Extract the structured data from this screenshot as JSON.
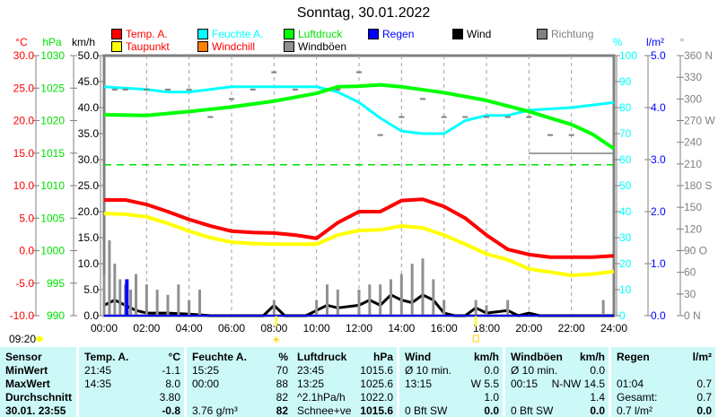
{
  "title": "Sonntag, 30.01.2022",
  "legend": [
    {
      "label": "Temp. A.",
      "color": "#ff0000",
      "text_color": "#ff0000"
    },
    {
      "label": "Feuchte A.",
      "color": "#00ffff",
      "text_color": "#00ffff"
    },
    {
      "label": "Luftdruck",
      "color": "#00ff00",
      "text_color": "#00e000"
    },
    {
      "label": "Regen",
      "color": "#0000ff",
      "text_color": "#0000ff"
    },
    {
      "label": "Wind",
      "color": "#000000",
      "text_color": "#000000"
    },
    {
      "label": "Richtung",
      "color": "#808080",
      "text_color": "#808080"
    },
    {
      "label": "Taupunkt",
      "color": "#ffff00",
      "text_color": "#ff0000"
    },
    {
      "label": "Windchill",
      "color": "#ff8000",
      "text_color": "#ff0000"
    },
    {
      "label": "Windböen",
      "color": "#909090",
      "text_color": "#000000"
    }
  ],
  "axes": {
    "temp": {
      "unit": "°C",
      "ticks": [
        "30.0",
        "25.0",
        "20.0",
        "15.0",
        "10.0",
        "5.0",
        "0.0",
        "-5.0",
        "-10.0"
      ]
    },
    "pressure": {
      "unit": "hPa",
      "ticks": [
        "1030",
        "1025",
        "1020",
        "1015",
        "1010",
        "1005",
        "1000",
        "995",
        "990"
      ]
    },
    "wind": {
      "unit": "km/h",
      "ticks": [
        "50.0",
        "45.0",
        "40.0",
        "35.0",
        "30.0",
        "25.0",
        "20.0",
        "15.0",
        "10.0",
        "5.0",
        "0.0"
      ]
    },
    "humidity": {
      "unit": "%",
      "ticks": [
        "100",
        "90",
        "80",
        "70",
        "60",
        "50",
        "40",
        "30",
        "20",
        "10",
        "0"
      ]
    },
    "rain": {
      "unit": "l/m²",
      "ticks": [
        "5.0",
        "4.0",
        "3.0",
        "2.0",
        "1.0",
        "0.0"
      ]
    },
    "direction": {
      "unit": "°",
      "ticks": [
        "360 N",
        "330",
        "300",
        "270 W",
        "240",
        "210",
        "180 S",
        "150",
        "120",
        "90  O",
        "60",
        "30",
        "0   N"
      ]
    },
    "time": [
      "00:00",
      "02:00",
      "04:00",
      "06:00",
      "08:00",
      "10:00",
      "12:00",
      "14:00",
      "16:00",
      "18:00",
      "20:00",
      "22:00",
      "24:00"
    ]
  },
  "sun": {
    "moon_time": "09:20",
    "sunrise_hour": 8.1,
    "sunset_hour": 17.5
  },
  "chart_data": {
    "type": "line",
    "title": "Sonntag, 30.01.2022",
    "xlim": [
      0,
      24
    ],
    "series": [
      {
        "name": "Temp. A.",
        "unit": "°C",
        "color": "#ff0000",
        "x": [
          0,
          1,
          2,
          3,
          4,
          5,
          6,
          7,
          8,
          9,
          10,
          11,
          12,
          13,
          14,
          15,
          16,
          17,
          18,
          19,
          20,
          21,
          22,
          23,
          24
        ],
        "values": [
          7.8,
          7.8,
          7.1,
          6.0,
          4.8,
          3.8,
          3.0,
          2.8,
          2.7,
          2.4,
          1.9,
          4.3,
          6.0,
          6.0,
          7.7,
          7.9,
          6.8,
          5.0,
          2.4,
          0.2,
          -0.6,
          -1.0,
          -1.0,
          -1.0,
          -0.8
        ]
      },
      {
        "name": "Taupunkt",
        "unit": "°C",
        "color": "#ffff00",
        "x": [
          0,
          1,
          2,
          3,
          4,
          5,
          6,
          7,
          8,
          9,
          10,
          11,
          12,
          13,
          14,
          15,
          16,
          17,
          18,
          19,
          20,
          21,
          22,
          23,
          24
        ],
        "values": [
          5.7,
          5.6,
          5.2,
          4.2,
          3.0,
          2.0,
          1.3,
          1.1,
          1.0,
          1.0,
          1.0,
          2.4,
          3.1,
          3.2,
          3.8,
          3.5,
          2.4,
          1.0,
          -0.5,
          -1.4,
          -2.8,
          -3.3,
          -3.8,
          -3.6,
          -3.2
        ]
      },
      {
        "name": "Feuchte A.",
        "unit": "%",
        "color": "#00ffff",
        "x": [
          0,
          2,
          3,
          4,
          6,
          8,
          10,
          11,
          12,
          13,
          14,
          15,
          16,
          17,
          18,
          19,
          20,
          22,
          24
        ],
        "values": [
          88,
          87,
          86,
          86,
          88,
          88,
          88,
          86,
          82,
          76,
          71,
          70,
          70,
          75,
          77,
          77,
          79,
          80,
          82
        ]
      },
      {
        "name": "Luftdruck",
        "unit": "hPa",
        "color": "#00ff00",
        "x": [
          0,
          2,
          4,
          6,
          8,
          10,
          11,
          12,
          13,
          14,
          16,
          18,
          20,
          22,
          23,
          24
        ],
        "values": [
          1020.9,
          1020.8,
          1021.4,
          1022.1,
          1023.0,
          1024.2,
          1025.2,
          1025.3,
          1025.5,
          1025.2,
          1024.3,
          1023.1,
          1021.4,
          1019.4,
          1017.9,
          1015.7
        ]
      },
      {
        "name": "Wind",
        "unit": "km/h",
        "color": "#000000",
        "x": [
          0,
          0.5,
          1,
          1.5,
          2,
          3,
          4,
          5,
          7.5,
          8,
          8.5,
          9.5,
          10,
          10.5,
          11,
          12,
          12.5,
          13,
          13.5,
          14,
          14.5,
          15,
          15.5,
          16,
          16.5,
          17,
          17.5,
          18,
          19,
          19.5,
          20,
          20.5,
          24
        ],
        "values": [
          2,
          3,
          2,
          1,
          0.5,
          0.5,
          0.3,
          0,
          0,
          2,
          0,
          0,
          1,
          2,
          1.5,
          2,
          3,
          2,
          4,
          3,
          2.5,
          4,
          3,
          0.5,
          0,
          0,
          1.5,
          0.5,
          1,
          0,
          0.5,
          0,
          0
        ]
      },
      {
        "name": "Windböen",
        "unit": "km/h",
        "color": "#909090",
        "type": "bar",
        "x": [
          0,
          0.25,
          0.5,
          0.75,
          1,
          1.25,
          1.5,
          2,
          2.5,
          3,
          3.5,
          4,
          4.5,
          8,
          10,
          10.5,
          11,
          12,
          12.5,
          13,
          13.5,
          14,
          14.5,
          15,
          15.5,
          16,
          17.5,
          18,
          19,
          23.5
        ],
        "values": [
          8,
          14.5,
          10,
          7,
          6,
          5,
          8,
          6,
          5,
          4,
          6,
          3,
          5,
          3,
          3,
          6,
          5,
          5,
          6,
          6,
          7,
          8,
          10,
          11,
          7,
          3,
          3,
          2,
          3,
          3
        ]
      },
      {
        "name": "Regen",
        "unit": "l/m²",
        "color": "#0000ff",
        "type": "bar",
        "x": [
          1.07
        ],
        "values": [
          0.7
        ]
      },
      {
        "name": "Richtung",
        "unit": "°",
        "color": "#808080",
        "type": "scatter",
        "x": [
          0.5,
          1,
          2,
          3,
          4,
          5,
          6,
          7,
          8,
          9,
          11,
          12,
          13,
          14,
          15,
          16,
          17,
          18,
          19,
          20,
          21,
          22
        ],
        "values": [
          313,
          313,
          313,
          313,
          313,
          275,
          300,
          313,
          337,
          313,
          313,
          337,
          250,
          275,
          300,
          275,
          275,
          275,
          275,
          275,
          250,
          250
        ]
      }
    ],
    "reference_line": {
      "name": "Luftdruck reference",
      "unit": "hPa",
      "value": 1013.2
    }
  },
  "table": {
    "headers": [
      [
        "Sensor",
        ""
      ],
      [
        "Temp. A.",
        "°C"
      ],
      [
        "Feuchte A.",
        "%"
      ],
      [
        "Luftdruck",
        "hPa"
      ],
      [
        "Wind",
        "km/h"
      ],
      [
        "Windböen",
        "km/h"
      ],
      [
        "Regen",
        "l/m²"
      ]
    ],
    "rows": [
      {
        "label": "MinWert",
        "cells": [
          [
            "21:45",
            "-1.1"
          ],
          [
            "15:25",
            "70"
          ],
          [
            "23:45",
            "1015.6"
          ],
          [
            "Ø 10 min.",
            "0.0"
          ],
          [
            "Ø 10 min.",
            "0.0"
          ],
          [
            "",
            ""
          ]
        ]
      },
      {
        "label": "MaxWert",
        "cells": [
          [
            "14:35",
            "8.0"
          ],
          [
            "00:00",
            "88"
          ],
          [
            "13:25",
            "1025.6"
          ],
          [
            "13:15",
            "W 5.5"
          ],
          [
            "00:15",
            "N-NW 14.5"
          ],
          [
            "01:04",
            "0.7"
          ]
        ]
      },
      {
        "label": "Durchschnitt",
        "cells": [
          [
            "",
            "3.80"
          ],
          [
            "",
            "82"
          ],
          [
            "^2.1hPa/h",
            "1022.0"
          ],
          [
            "",
            "1.0"
          ],
          [
            "",
            "1.4"
          ],
          [
            "Gesamt:",
            "0.7"
          ]
        ]
      },
      {
        "label": "30.01. 23:55",
        "cells": [
          [
            "",
            "-0.8"
          ],
          [
            "3.76 g/m³",
            "82"
          ],
          [
            "Schnee+ve",
            "1015.6"
          ],
          [
            "0 Bft SW",
            "0.0"
          ],
          [
            "0 Bft SW",
            "0.0"
          ],
          [
            "0.7 l/m²",
            "0.0"
          ]
        ]
      }
    ]
  }
}
